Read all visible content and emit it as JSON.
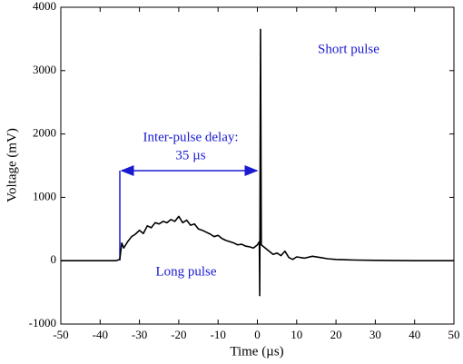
{
  "chart_data": {
    "type": "line",
    "xlabel": "Time (µs)",
    "ylabel": "Voltage (mV)",
    "annotations": [
      "Short pulse",
      "Inter-pulse delay:",
      "35 µs",
      "Long pulse"
    ],
    "color": "#000000",
    "x": [
      -50,
      -45,
      -40,
      -36,
      -35,
      -34.5,
      -34,
      -33,
      -32,
      -31,
      -30,
      -29,
      -28,
      -27,
      -26,
      -25,
      -24,
      -23,
      -22,
      -21,
      -20,
      -19,
      -18,
      -17,
      -16,
      -15,
      -14,
      -13,
      -12,
      -11,
      -10,
      -9,
      -8,
      -7,
      -6,
      -5,
      -4,
      -3,
      -2,
      -1,
      0,
      0.5,
      0.6,
      0.8,
      1,
      2,
      3,
      4,
      5,
      6,
      7,
      8,
      9,
      10,
      12,
      14,
      16,
      18,
      20,
      25,
      30,
      40,
      50
    ],
    "values": [
      0,
      0,
      0,
      0,
      20,
      280,
      200,
      300,
      380,
      420,
      480,
      430,
      550,
      520,
      600,
      580,
      620,
      600,
      650,
      620,
      700,
      600,
      640,
      560,
      580,
      500,
      480,
      450,
      420,
      380,
      400,
      350,
      320,
      300,
      280,
      250,
      260,
      230,
      220,
      200,
      250,
      300,
      -550,
      3650,
      250,
      200,
      150,
      100,
      120,
      80,
      150,
      50,
      20,
      60,
      40,
      70,
      50,
      30,
      20,
      10,
      5,
      0,
      0
    ],
    "xlim": [
      -50,
      50
    ],
    "xticks": [
      -50,
      -40,
      -30,
      -20,
      -10,
      0,
      10,
      20,
      30,
      40,
      50
    ],
    "ylim": [
      -1000,
      4000
    ],
    "yticks": [
      -1000,
      0,
      1000,
      2000,
      3000,
      4000
    ]
  }
}
